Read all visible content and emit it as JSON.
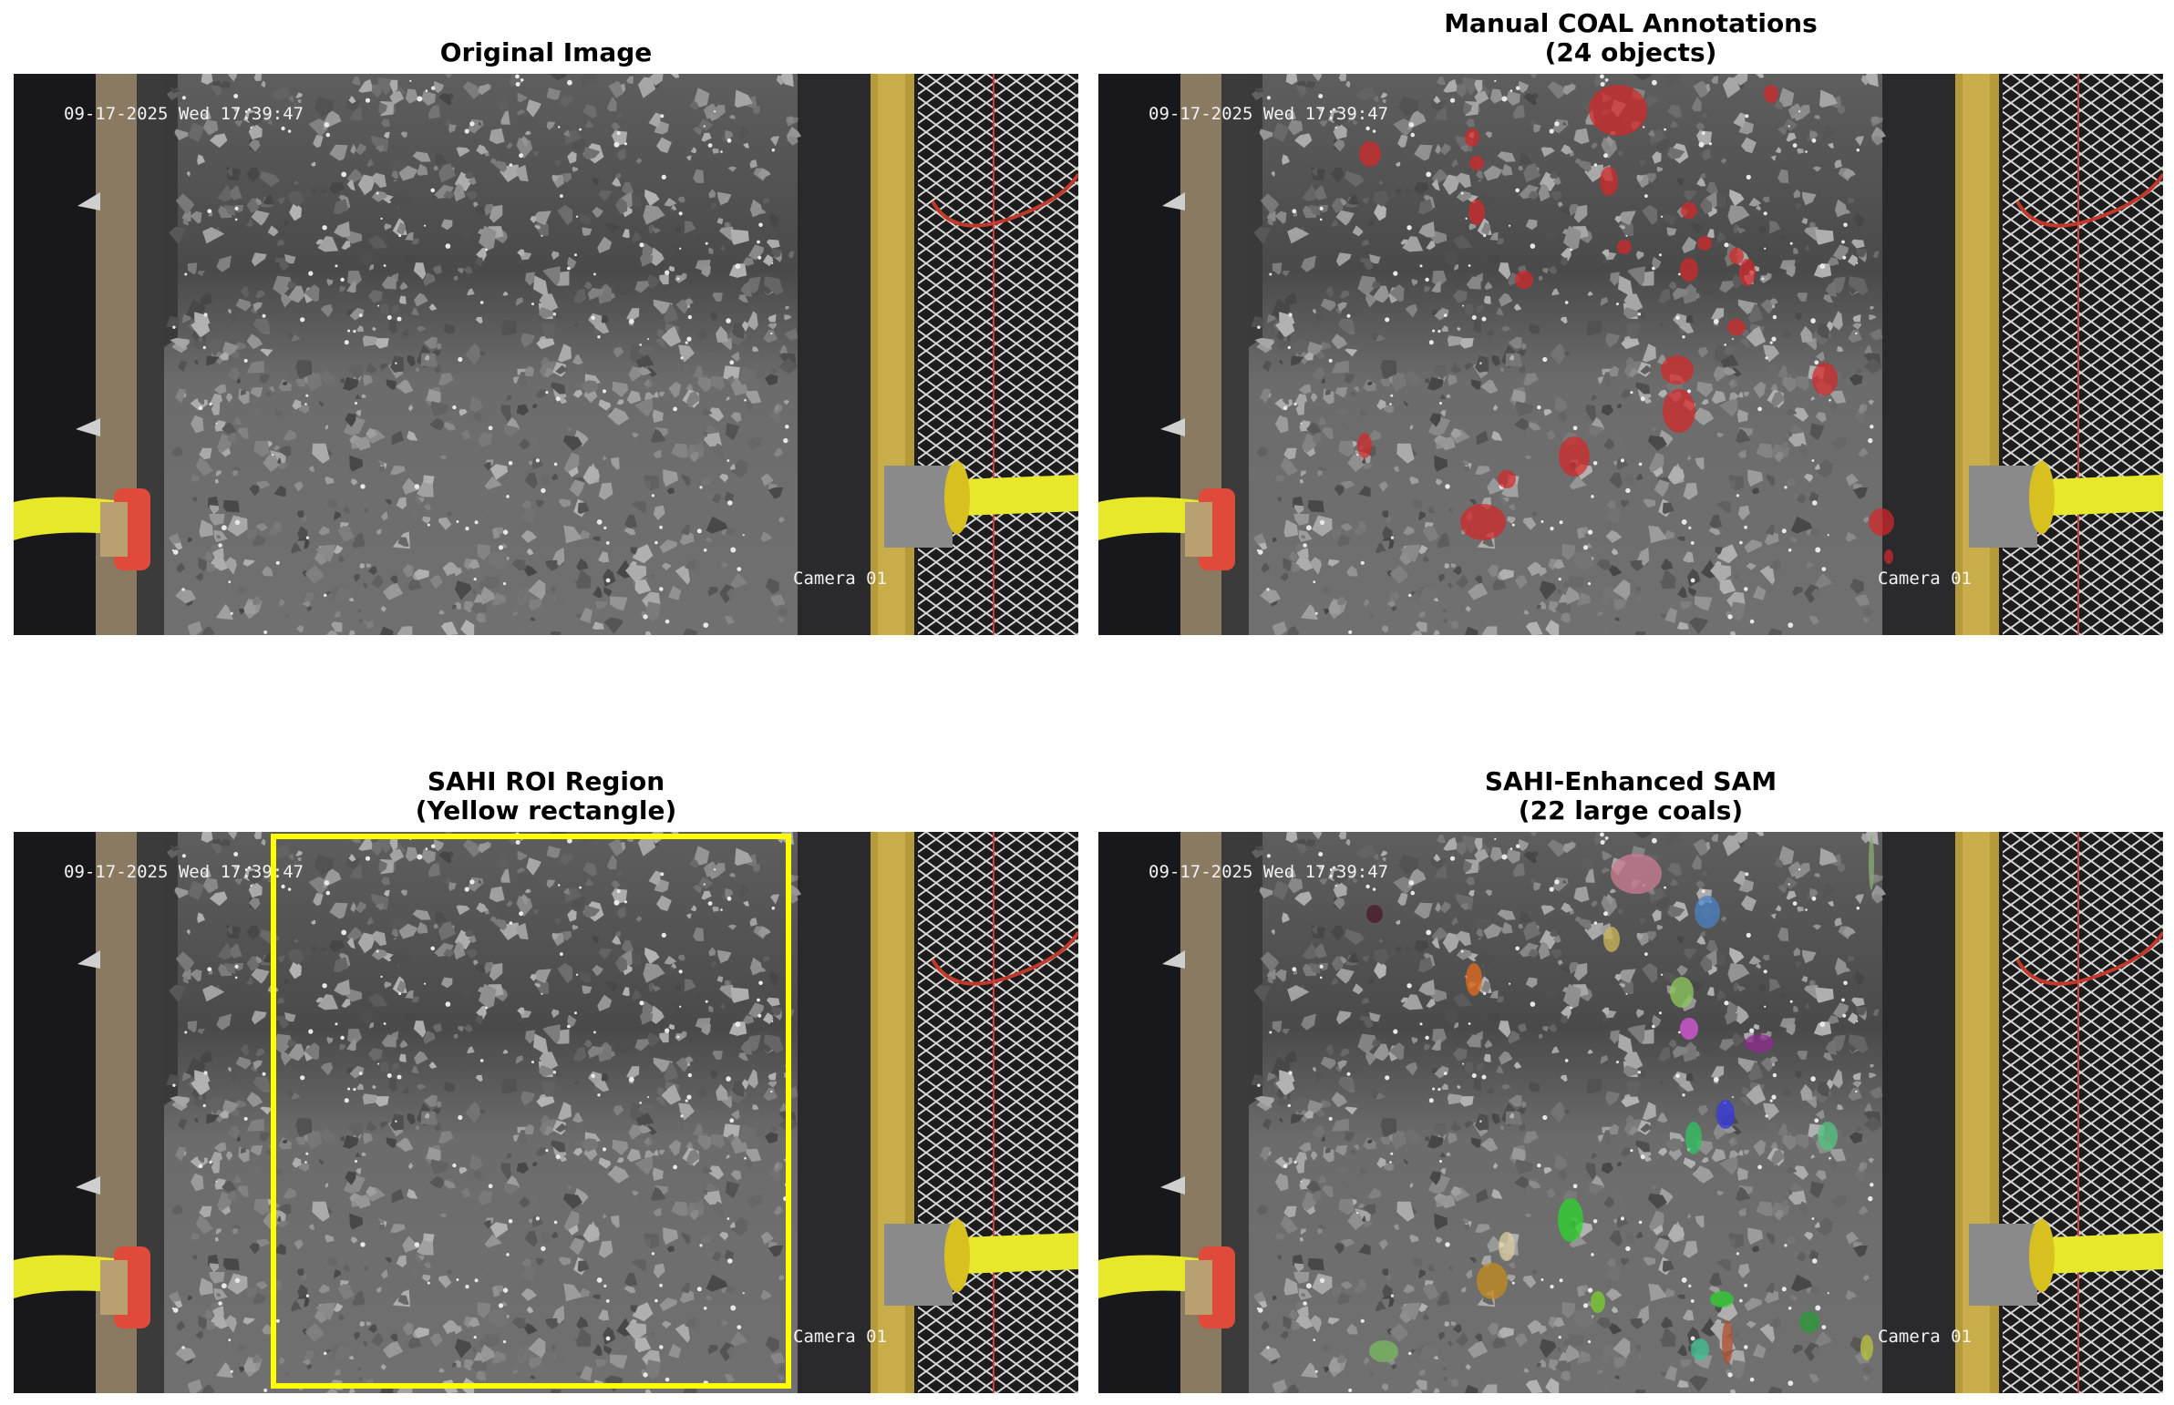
{
  "panels": [
    {
      "id": "original",
      "title_lines": [
        "Original Image"
      ]
    },
    {
      "id": "manual",
      "title_lines": [
        "Manual COAL Annotations",
        "(24 objects)"
      ]
    },
    {
      "id": "roi",
      "title_lines": [
        "SAHI ROI Region",
        "(Yellow rectangle)"
      ]
    },
    {
      "id": "sam",
      "title_lines": [
        "SAHI-Enhanced SAM",
        "(22 large coals)"
      ]
    }
  ],
  "osd": {
    "timestamp": "09-17-2025 Wed 17:39:47",
    "camera": "Camera 01"
  },
  "colors": {
    "manual_overlay": "#d62728",
    "roi_rectangle": "#ffff00"
  },
  "sam_mask_colors": [
    "#c97b8f",
    "#4a7fc0",
    "#c9b35a",
    "#8cc55a",
    "#d955d9",
    "#8a2c8a",
    "#e06a20",
    "#4a1c2a",
    "#3a3ae0",
    "#30c060",
    "#55c080",
    "#2ed12e",
    "#d9c9a0",
    "#c08a20",
    "#7acd2e",
    "#30d030",
    "#40c090",
    "#2a9a3a",
    "#b05030",
    "#7ab860",
    "#b8c040",
    "#8aaa70"
  ]
}
